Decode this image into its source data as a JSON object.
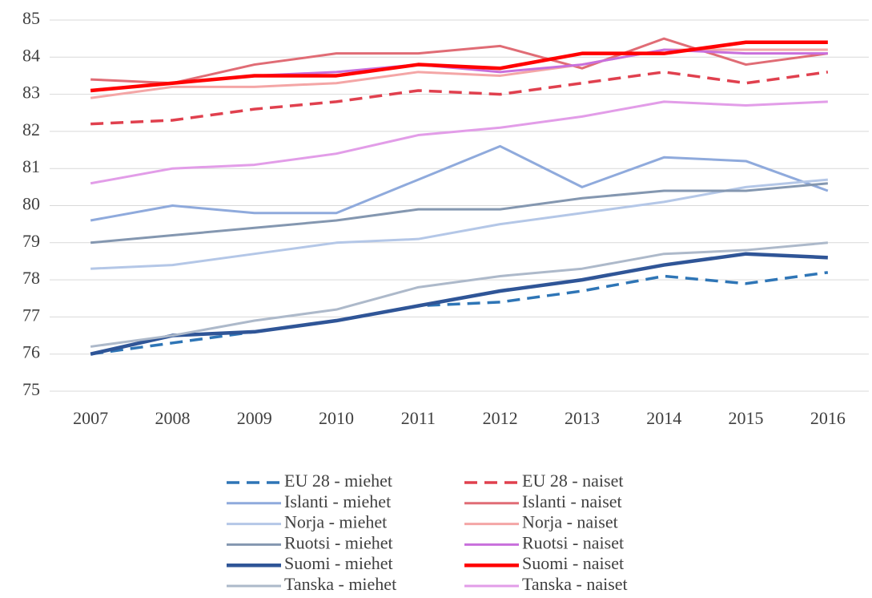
{
  "chart_data": {
    "type": "line",
    "x": [
      2007,
      2008,
      2009,
      2010,
      2011,
      2012,
      2013,
      2014,
      2015,
      2016
    ],
    "ylim": [
      75,
      85
    ],
    "yticks": [
      75,
      76,
      77,
      78,
      79,
      80,
      81,
      82,
      83,
      84,
      85
    ],
    "grid": true,
    "series": [
      {
        "name": "EU 28 - miehet",
        "color": "#2e75b6",
        "dash": true,
        "width": 3.5,
        "values": [
          76.0,
          76.3,
          76.6,
          76.9,
          77.3,
          77.4,
          77.7,
          78.1,
          77.9,
          78.2
        ]
      },
      {
        "name": "EU 28 - naiset",
        "color": "#e0404e",
        "dash": true,
        "width": 3.5,
        "values": [
          82.2,
          82.3,
          82.6,
          82.8,
          83.1,
          83.0,
          83.3,
          83.6,
          83.3,
          83.6
        ]
      },
      {
        "name": "Islanti - miehet",
        "color": "#8faadc",
        "dash": false,
        "width": 3,
        "values": [
          79.6,
          80.0,
          79.8,
          79.8,
          80.7,
          81.6,
          80.5,
          81.3,
          81.2,
          80.4
        ]
      },
      {
        "name": "Islanti - naiset",
        "color": "#e06c75",
        "dash": false,
        "width": 3,
        "values": [
          83.4,
          83.3,
          83.8,
          84.1,
          84.1,
          84.3,
          83.7,
          84.5,
          83.8,
          84.1
        ]
      },
      {
        "name": "Norja - miehet",
        "color": "#b4c7e7",
        "dash": false,
        "width": 3,
        "values": [
          78.3,
          78.4,
          78.7,
          79.0,
          79.1,
          79.5,
          79.8,
          80.1,
          80.5,
          80.7
        ]
      },
      {
        "name": "Norja - naiset",
        "color": "#f4a6a6",
        "dash": false,
        "width": 3,
        "values": [
          82.9,
          83.2,
          83.2,
          83.3,
          83.6,
          83.5,
          83.8,
          84.2,
          84.2,
          84.2
        ]
      },
      {
        "name": "Ruotsi - miehet",
        "color": "#8497b0",
        "dash": false,
        "width": 3,
        "values": [
          79.0,
          79.2,
          79.4,
          79.6,
          79.9,
          79.9,
          80.2,
          80.4,
          80.4,
          80.6
        ]
      },
      {
        "name": "Ruotsi - naiset",
        "color": "#c86fdc",
        "dash": false,
        "width": 3,
        "values": [
          83.1,
          83.3,
          83.5,
          83.6,
          83.8,
          83.6,
          83.8,
          84.2,
          84.1,
          84.1
        ]
      },
      {
        "name": "Suomi - miehet",
        "color": "#2f5597",
        "dash": false,
        "width": 4.5,
        "values": [
          76.0,
          76.5,
          76.6,
          76.9,
          77.3,
          77.7,
          78.0,
          78.4,
          78.7,
          78.6
        ]
      },
      {
        "name": "Suomi - naiset",
        "color": "#ff0000",
        "dash": false,
        "width": 4.5,
        "values": [
          83.1,
          83.3,
          83.5,
          83.5,
          83.8,
          83.7,
          84.1,
          84.1,
          84.4,
          84.4
        ]
      },
      {
        "name": "Tanska - miehet",
        "color": "#adb9ca",
        "dash": false,
        "width": 3,
        "values": [
          76.2,
          76.5,
          76.9,
          77.2,
          77.8,
          78.1,
          78.3,
          78.7,
          78.8,
          79.0
        ]
      },
      {
        "name": "Tanska - naiset",
        "color": "#e29de8",
        "dash": false,
        "width": 3,
        "values": [
          80.6,
          81.0,
          81.1,
          81.4,
          81.9,
          82.1,
          82.4,
          82.8,
          82.7,
          82.8
        ]
      }
    ]
  }
}
